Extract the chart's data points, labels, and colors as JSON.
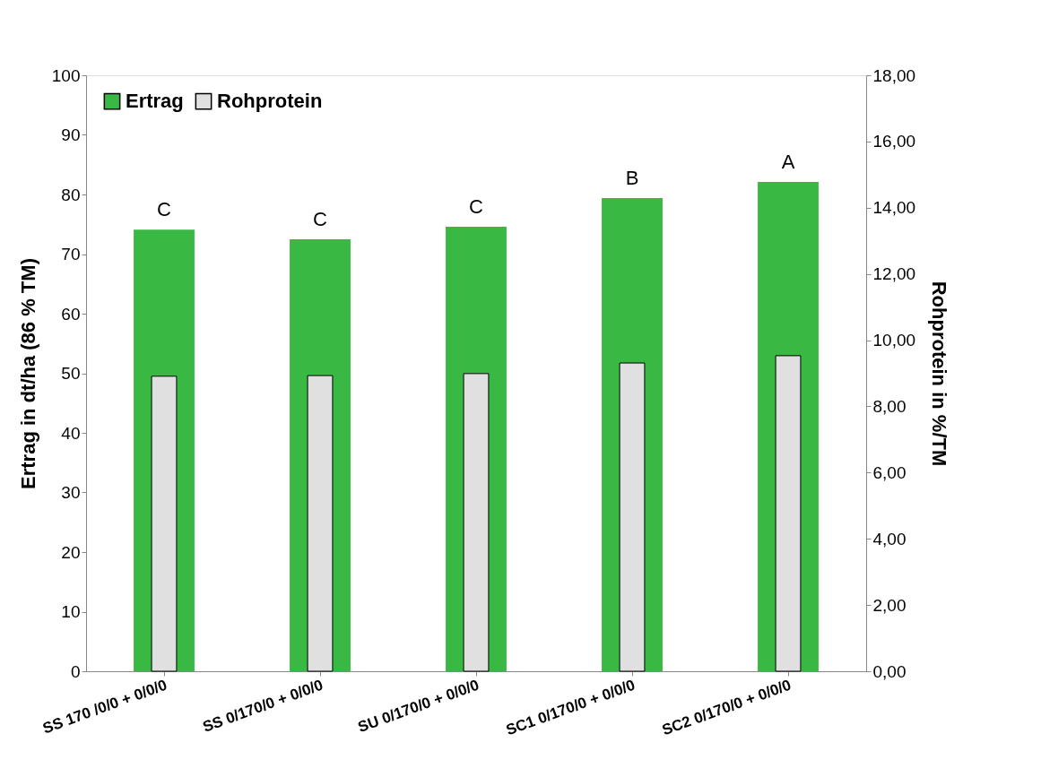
{
  "chart_data": {
    "type": "bar",
    "categories": [
      "SS 170 /0/0 + 0/0/0",
      "SS  0/170/0 + 0/0/0",
      "SU  0/170/0 + 0/0/0",
      "SC1  0/170/0 + 0/0/0",
      "SC2  0/170/0 + 0/0/0"
    ],
    "series": [
      {
        "name": "Ertrag",
        "color": "#39b843",
        "values": [
          74.1,
          72.5,
          74.6,
          79.4,
          82.1
        ]
      },
      {
        "name": "Rohprotein",
        "color": "#e0e0e0",
        "axis": "y2",
        "values": [
          8.91,
          8.93,
          8.99,
          9.31,
          9.53
        ]
      }
    ],
    "ylabel": "Ertrag in dt/ha (86 % TM)",
    "y2label": "Rohprotein in %/TM",
    "ylim": [
      0,
      100
    ],
    "yticks": [
      0,
      10,
      20,
      30,
      40,
      50,
      60,
      70,
      80,
      90,
      100
    ],
    "y2lim": [
      0,
      18
    ],
    "y2ticks": [
      {
        "value": 0,
        "label": "0,00"
      },
      {
        "value": 2,
        "label": "2,00"
      },
      {
        "value": 4,
        "label": "4,00"
      },
      {
        "value": 6,
        "label": "6,00"
      },
      {
        "value": 8,
        "label": "8,00"
      },
      {
        "value": 10,
        "label": "10,00"
      },
      {
        "value": 12,
        "label": "12,00"
      },
      {
        "value": 14,
        "label": "14,00"
      },
      {
        "value": 16,
        "label": "16,00"
      },
      {
        "value": 18,
        "label": "18,00"
      }
    ],
    "annotations": [
      {
        "text": "C",
        "x": "SS 170 /0/0 + 0/0/0",
        "y": 74.1
      },
      {
        "text": "C",
        "x": "SS  0/170/0 + 0/0/0",
        "y": 72.5
      },
      {
        "text": "C",
        "x": "SU  0/170/0 + 0/0/0",
        "y": 74.6
      },
      {
        "text": "B",
        "x": "SC1  0/170/0 + 0/0/0",
        "y": 79.4
      },
      {
        "text": "A",
        "x": "SC2  0/170/0 + 0/0/0",
        "y": 82.1
      }
    ],
    "legend": "top left",
    "grid": false
  }
}
